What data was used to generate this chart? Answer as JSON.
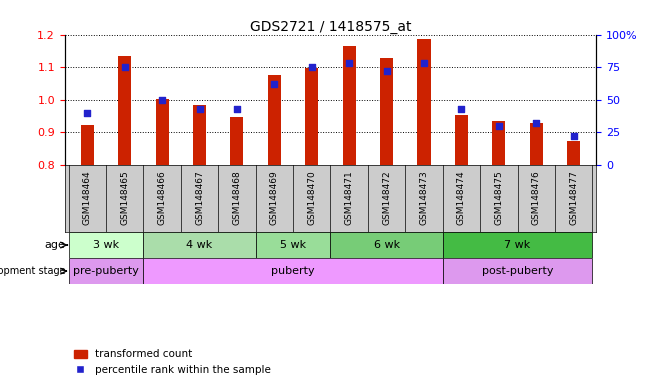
{
  "title": "GDS2721 / 1418575_at",
  "samples": [
    "GSM148464",
    "GSM148465",
    "GSM148466",
    "GSM148467",
    "GSM148468",
    "GSM148469",
    "GSM148470",
    "GSM148471",
    "GSM148472",
    "GSM148473",
    "GSM148474",
    "GSM148475",
    "GSM148476",
    "GSM148477"
  ],
  "red_values": [
    0.924,
    1.135,
    1.002,
    0.985,
    0.946,
    1.077,
    1.098,
    1.165,
    1.128,
    1.185,
    0.953,
    0.935,
    0.93,
    0.873
  ],
  "blue_percentiles": [
    40,
    75,
    50,
    43,
    43,
    62,
    75,
    78,
    72,
    78,
    43,
    30,
    32,
    22
  ],
  "ylim_left": [
    0.8,
    1.2
  ],
  "ylim_right": [
    0,
    100
  ],
  "yticks_left": [
    0.8,
    0.9,
    1.0,
    1.1,
    1.2
  ],
  "yticks_right": [
    0,
    25,
    50,
    75,
    100
  ],
  "bar_color": "#cc2200",
  "dot_color": "#2222cc",
  "age_groups": [
    {
      "label": "3 wk",
      "start": 0,
      "end": 2
    },
    {
      "label": "4 wk",
      "start": 2,
      "end": 5
    },
    {
      "label": "5 wk",
      "start": 5,
      "end": 7
    },
    {
      "label": "6 wk",
      "start": 7,
      "end": 10
    },
    {
      "label": "7 wk",
      "start": 10,
      "end": 14
    }
  ],
  "age_colors": [
    "#ccffcc",
    "#aaddaa",
    "#99dd99",
    "#77cc77",
    "#44bb44"
  ],
  "dev_groups": [
    {
      "label": "pre-puberty",
      "start": 0,
      "end": 2
    },
    {
      "label": "puberty",
      "start": 2,
      "end": 10
    },
    {
      "label": "post-puberty",
      "start": 10,
      "end": 14
    }
  ],
  "dev_colors": [
    "#dd88ee",
    "#dd88ee",
    "#dd88ee"
  ],
  "age_row_label": "age",
  "dev_row_label": "development stage",
  "legend_red": "transformed count",
  "legend_blue": "percentile rank within the sample",
  "sample_bg": "#cccccc",
  "bar_width": 0.35
}
